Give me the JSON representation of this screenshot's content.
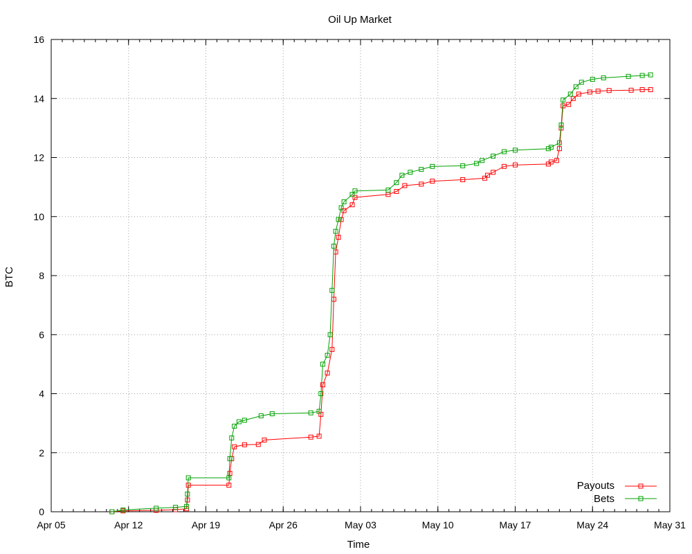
{
  "chart_data": {
    "type": "line",
    "title": "Oil Up Market",
    "xlabel": "Time",
    "ylabel": "BTC",
    "x_tick_labels": [
      "Apr 05",
      "Apr 12",
      "Apr 19",
      "Apr 26",
      "May 03",
      "May 10",
      "May 17",
      "May 24",
      "May 31"
    ],
    "y_tick_labels": [
      "0",
      "2",
      "4",
      "6",
      "8",
      "10",
      "12",
      "14",
      "16"
    ],
    "xlim": [
      "Apr 05",
      "May 31"
    ],
    "ylim": [
      0,
      16
    ],
    "grid": true,
    "legend_position": "bottom-right",
    "colors": {
      "payouts": "#ff0000",
      "bets": "#00a000"
    },
    "series": [
      {
        "name": "Payouts",
        "color": "#ff0000",
        "points": [
          [
            "Apr 10 12:00",
            0.0
          ],
          [
            "Apr 11 12:00",
            0.03
          ],
          [
            "Apr 14 12:00",
            0.05
          ],
          [
            "Apr 16 06:00",
            0.07
          ],
          [
            "Apr 17 06:00",
            0.1
          ],
          [
            "Apr 17 08:00",
            0.4
          ],
          [
            "Apr 17 10:00",
            0.9
          ],
          [
            "Apr 21 02:00",
            0.9
          ],
          [
            "Apr 21 04:00",
            1.3
          ],
          [
            "Apr 21 08:00",
            1.8
          ],
          [
            "Apr 21 14:00",
            2.2
          ],
          [
            "Apr 22 12:00",
            2.27
          ],
          [
            "Apr 23 18:00",
            2.28
          ],
          [
            "Apr 24 07:00",
            2.43
          ],
          [
            "Apr 28 12:00",
            2.53
          ],
          [
            "Apr 29 06:00",
            2.56
          ],
          [
            "Apr 29 10:00",
            3.3
          ],
          [
            "Apr 29 14:00",
            4.3
          ],
          [
            "Apr 30 00:00",
            4.7
          ],
          [
            "Apr 30 10:00",
            5.5
          ],
          [
            "Apr 30 14:00",
            7.2
          ],
          [
            "Apr 30 18:00",
            8.8
          ],
          [
            "May 01 00:00",
            9.3
          ],
          [
            "May 01 06:00",
            9.9
          ],
          [
            "May 01 12:00",
            10.2
          ],
          [
            "May 02 06:00",
            10.4
          ],
          [
            "May 02 12:00",
            10.65
          ],
          [
            "May 05 12:00",
            10.75
          ],
          [
            "May 06 06:00",
            10.85
          ],
          [
            "May 07 00:00",
            11.05
          ],
          [
            "May 08 12:00",
            11.1
          ],
          [
            "May 09 12:00",
            11.2
          ],
          [
            "May 12 06:00",
            11.25
          ],
          [
            "May 14 06:00",
            11.3
          ],
          [
            "May 14 12:00",
            11.4
          ],
          [
            "May 15 00:00",
            11.5
          ],
          [
            "May 16 00:00",
            11.7
          ],
          [
            "May 17 00:00",
            11.75
          ],
          [
            "May 20 00:00",
            11.78
          ],
          [
            "May 20 06:00",
            11.85
          ],
          [
            "May 20 18:00",
            11.9
          ],
          [
            "May 21 00:00",
            12.3
          ],
          [
            "May 21 04:00",
            13.0
          ],
          [
            "May 21 08:00",
            13.75
          ],
          [
            "May 21 20:00",
            13.8
          ],
          [
            "May 22 06:00",
            14.0
          ],
          [
            "May 22 18:00",
            14.15
          ],
          [
            "May 23 18:00",
            14.22
          ],
          [
            "May 24 12:00",
            14.25
          ],
          [
            "May 25 12:00",
            14.27
          ],
          [
            "May 27 12:00",
            14.28
          ],
          [
            "May 28 12:00",
            14.3
          ],
          [
            "May 29 06:00",
            14.3
          ]
        ]
      },
      {
        "name": "Bets",
        "color": "#00a000",
        "points": [
          [
            "Apr 10 12:00",
            0.0
          ],
          [
            "Apr 11 12:00",
            0.06
          ],
          [
            "Apr 14 12:00",
            0.12
          ],
          [
            "Apr 16 06:00",
            0.15
          ],
          [
            "Apr 17 06:00",
            0.18
          ],
          [
            "Apr 17 08:00",
            0.6
          ],
          [
            "Apr 17 10:00",
            1.15
          ],
          [
            "Apr 21 02:00",
            1.15
          ],
          [
            "Apr 21 04:00",
            1.8
          ],
          [
            "Apr 21 08:00",
            2.5
          ],
          [
            "Apr 21 14:00",
            2.9
          ],
          [
            "Apr 22 00:00",
            3.05
          ],
          [
            "Apr 22 12:00",
            3.1
          ],
          [
            "Apr 24 00:00",
            3.25
          ],
          [
            "Apr 25 00:00",
            3.32
          ],
          [
            "Apr 28 12:00",
            3.35
          ],
          [
            "Apr 29 06:00",
            3.4
          ],
          [
            "Apr 29 10:00",
            4.0
          ],
          [
            "Apr 29 14:00",
            5.0
          ],
          [
            "Apr 30 00:00",
            5.3
          ],
          [
            "Apr 30 06:00",
            6.0
          ],
          [
            "Apr 30 10:00",
            7.5
          ],
          [
            "Apr 30 14:00",
            9.0
          ],
          [
            "Apr 30 18:00",
            9.5
          ],
          [
            "May 01 00:00",
            9.9
          ],
          [
            "May 01 06:00",
            10.3
          ],
          [
            "May 01 12:00",
            10.5
          ],
          [
            "May 02 06:00",
            10.75
          ],
          [
            "May 02 12:00",
            10.87
          ],
          [
            "May 05 12:00",
            10.9
          ],
          [
            "May 06 06:00",
            11.15
          ],
          [
            "May 06 18:00",
            11.4
          ],
          [
            "May 07 12:00",
            11.5
          ],
          [
            "May 08 12:00",
            11.6
          ],
          [
            "May 09 12:00",
            11.7
          ],
          [
            "May 12 06:00",
            11.72
          ],
          [
            "May 13 12:00",
            11.8
          ],
          [
            "May 14 00:00",
            11.9
          ],
          [
            "May 15 00:00",
            12.05
          ],
          [
            "May 16 00:00",
            12.2
          ],
          [
            "May 17 00:00",
            12.25
          ],
          [
            "May 20 00:00",
            12.3
          ],
          [
            "May 20 06:00",
            12.35
          ],
          [
            "May 21 00:00",
            12.5
          ],
          [
            "May 21 04:00",
            13.1
          ],
          [
            "May 21 08:00",
            13.95
          ],
          [
            "May 22 00:00",
            14.15
          ],
          [
            "May 22 12:00",
            14.4
          ],
          [
            "May 23 00:00",
            14.55
          ],
          [
            "May 24 00:00",
            14.65
          ],
          [
            "May 25 00:00",
            14.7
          ],
          [
            "May 27 06:00",
            14.75
          ],
          [
            "May 28 12:00",
            14.78
          ],
          [
            "May 29 06:00",
            14.8
          ]
        ]
      }
    ]
  }
}
